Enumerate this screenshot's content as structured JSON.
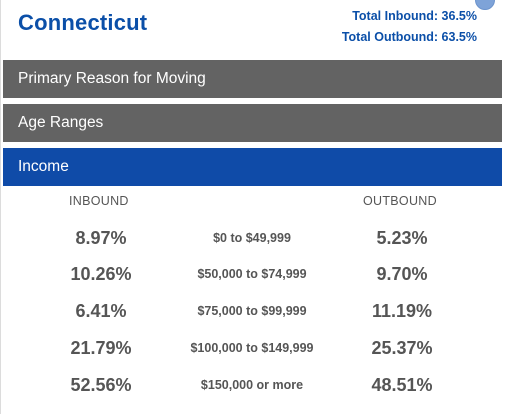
{
  "header": {
    "state": "Connecticut",
    "total_inbound": "Total Inbound: 36.5%",
    "total_outbound": "Total Outbound: 63.5%"
  },
  "sections": [
    {
      "label": "Primary Reason for Moving",
      "active": false
    },
    {
      "label": "Age Ranges",
      "active": false
    },
    {
      "label": "Income",
      "active": true
    }
  ],
  "income": {
    "inbound_header": "INBOUND",
    "outbound_header": "OUTBOUND",
    "rows": [
      {
        "inbound": "8.97%",
        "range": "$0 to $49,999",
        "outbound": "5.23%"
      },
      {
        "inbound": "10.26%",
        "range": "$50,000 to $74,999",
        "outbound": "9.70%"
      },
      {
        "inbound": "6.41%",
        "range": "$75,000 to $99,999",
        "outbound": "11.19%"
      },
      {
        "inbound": "21.79%",
        "range": "$100,000 to $149,999",
        "outbound": "25.37%"
      },
      {
        "inbound": "52.56%",
        "range": "$150,000 or more",
        "outbound": "48.51%"
      }
    ]
  },
  "colors": {
    "accent": "#0b4fa8",
    "active_bar": "#0f4ba8",
    "inactive_bar": "#636363",
    "text": "#555555"
  }
}
